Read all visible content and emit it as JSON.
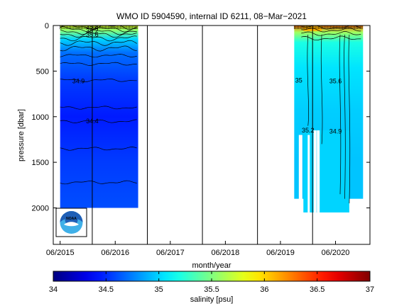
{
  "chart_data": {
    "type": "heatmap",
    "title": "WMO ID 5904590, internal ID 6211, 08−Mar−2021",
    "xlabel": "month/year",
    "ylabel": "pressure [dbar]",
    "x_tick_labels": [
      "06/2015",
      "06/2016",
      "06/2017",
      "06/2018",
      "06/2019",
      "06/2020"
    ],
    "y_tick_labels": [
      "0",
      "500",
      "1000",
      "1500",
      "2000"
    ],
    "y_ticks": [
      0,
      500,
      1000,
      1500,
      2000
    ],
    "ylim": [
      2400,
      0
    ],
    "year_boundaries": [
      "01/2016",
      "01/2017",
      "01/2018",
      "01/2019",
      "01/2020"
    ],
    "colorbar": {
      "label": "salinity [psu]",
      "range": [
        34,
        37
      ],
      "tick_labels": [
        "34",
        "34.5",
        "35",
        "35.5",
        "36",
        "36.5",
        "37"
      ],
      "colormap": "jet"
    },
    "contour_labels": [
      {
        "text": "35.8",
        "at": [
          "01/2016",
          15
        ]
      },
      {
        "text": "35.2",
        "at": [
          "01/2016",
          60
        ]
      },
      {
        "text": "35.6",
        "at": [
          "01/2016",
          100
        ]
      },
      {
        "text": "34.9",
        "at": [
          "10/2015",
          610
        ]
      },
      {
        "text": "34.4",
        "at": [
          "01/2016",
          1050
        ]
      },
      {
        "text": "35",
        "at": [
          "10/2019",
          600
        ]
      },
      {
        "text": "35.6",
        "at": [
          "06/2020",
          610
        ]
      },
      {
        "text": "35.2",
        "at": [
          "12/2019",
          1150
        ]
      },
      {
        "text": "34.9",
        "at": [
          "06/2020",
          1160
        ]
      }
    ],
    "segments": [
      {
        "period": "06/2015 – 11/2016",
        "surface_salinity": 35.8,
        "min_salinity": 34.3,
        "max_pressure": 2000
      },
      {
        "period": "09/2019 – 12/2020",
        "surface_salinity": 36.3,
        "min_salinity": 34.9,
        "max_pressure": 2050
      }
    ]
  },
  "logo": {
    "text": "NOAA"
  },
  "colors": {
    "noaa_blue": "#1f5fb6",
    "noaa_light": "#3fb0e8"
  }
}
